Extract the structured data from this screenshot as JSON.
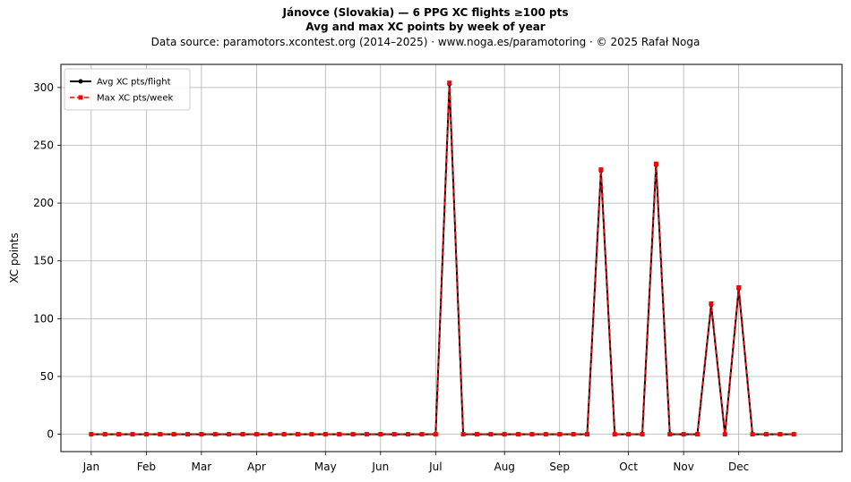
{
  "chart_data": {
    "type": "line",
    "title": "Jánovce (Slovakia)  —  6 PPG XC flights ≥100 pts",
    "subtitle": "Avg and max XC points by week of year",
    "source": "Data source: paramotors.xcontest.org (2014–2025)  ·  www.noga.es/paramotoring  ·  © 2025 Rafał Noga",
    "ylabel": "XC points",
    "xlabel": "",
    "x": [
      1,
      2,
      3,
      4,
      5,
      6,
      7,
      8,
      9,
      10,
      11,
      12,
      13,
      14,
      15,
      16,
      17,
      18,
      19,
      20,
      21,
      22,
      23,
      24,
      25,
      26,
      27,
      28,
      29,
      30,
      31,
      32,
      33,
      34,
      35,
      36,
      37,
      38,
      39,
      40,
      41,
      42,
      43,
      44,
      45,
      46,
      47,
      48,
      49,
      50,
      51,
      52
    ],
    "xlim": [
      -1.2,
      55.5
    ],
    "ylim": [
      -15,
      320
    ],
    "yticks": [
      0,
      50,
      100,
      150,
      200,
      250,
      300
    ],
    "month_ticks": [
      {
        "label": "Jan",
        "x": 1
      },
      {
        "label": "Feb",
        "x": 5
      },
      {
        "label": "Mar",
        "x": 9
      },
      {
        "label": "Apr",
        "x": 13
      },
      {
        "label": "May",
        "x": 18
      },
      {
        "label": "Jun",
        "x": 22
      },
      {
        "label": "Jul",
        "x": 26
      },
      {
        "label": "Aug",
        "x": 31
      },
      {
        "label": "Sep",
        "x": 35
      },
      {
        "label": "Oct",
        "x": 40
      },
      {
        "label": "Nov",
        "x": 44
      },
      {
        "label": "Dec",
        "x": 48
      }
    ],
    "grid": true,
    "legend_position": "top-left",
    "series": [
      {
        "name": "Avg XC pts/flight",
        "color": "#000000",
        "marker": "circle",
        "linestyle": "solid",
        "values": [
          0,
          0,
          0,
          0,
          0,
          0,
          0,
          0,
          0,
          0,
          0,
          0,
          0,
          0,
          0,
          0,
          0,
          0,
          0,
          0,
          0,
          0,
          0,
          0,
          0,
          0,
          303,
          0,
          0,
          0,
          0,
          0,
          0,
          0,
          0,
          0,
          0,
          228,
          0,
          0,
          0,
          233,
          0,
          0,
          0,
          112,
          0,
          126,
          0,
          0,
          0,
          0
        ]
      },
      {
        "name": "Max XC pts/week",
        "color": "#ff0000",
        "marker": "square",
        "linestyle": "dashed",
        "values": [
          0,
          0,
          0,
          0,
          0,
          0,
          0,
          0,
          0,
          0,
          0,
          0,
          0,
          0,
          0,
          0,
          0,
          0,
          0,
          0,
          0,
          0,
          0,
          0,
          0,
          0,
          304,
          0,
          0,
          0,
          0,
          0,
          0,
          0,
          0,
          0,
          0,
          229,
          0,
          0,
          0,
          234,
          0,
          0,
          0,
          113,
          0,
          127,
          0,
          0,
          0,
          0
        ]
      }
    ]
  }
}
